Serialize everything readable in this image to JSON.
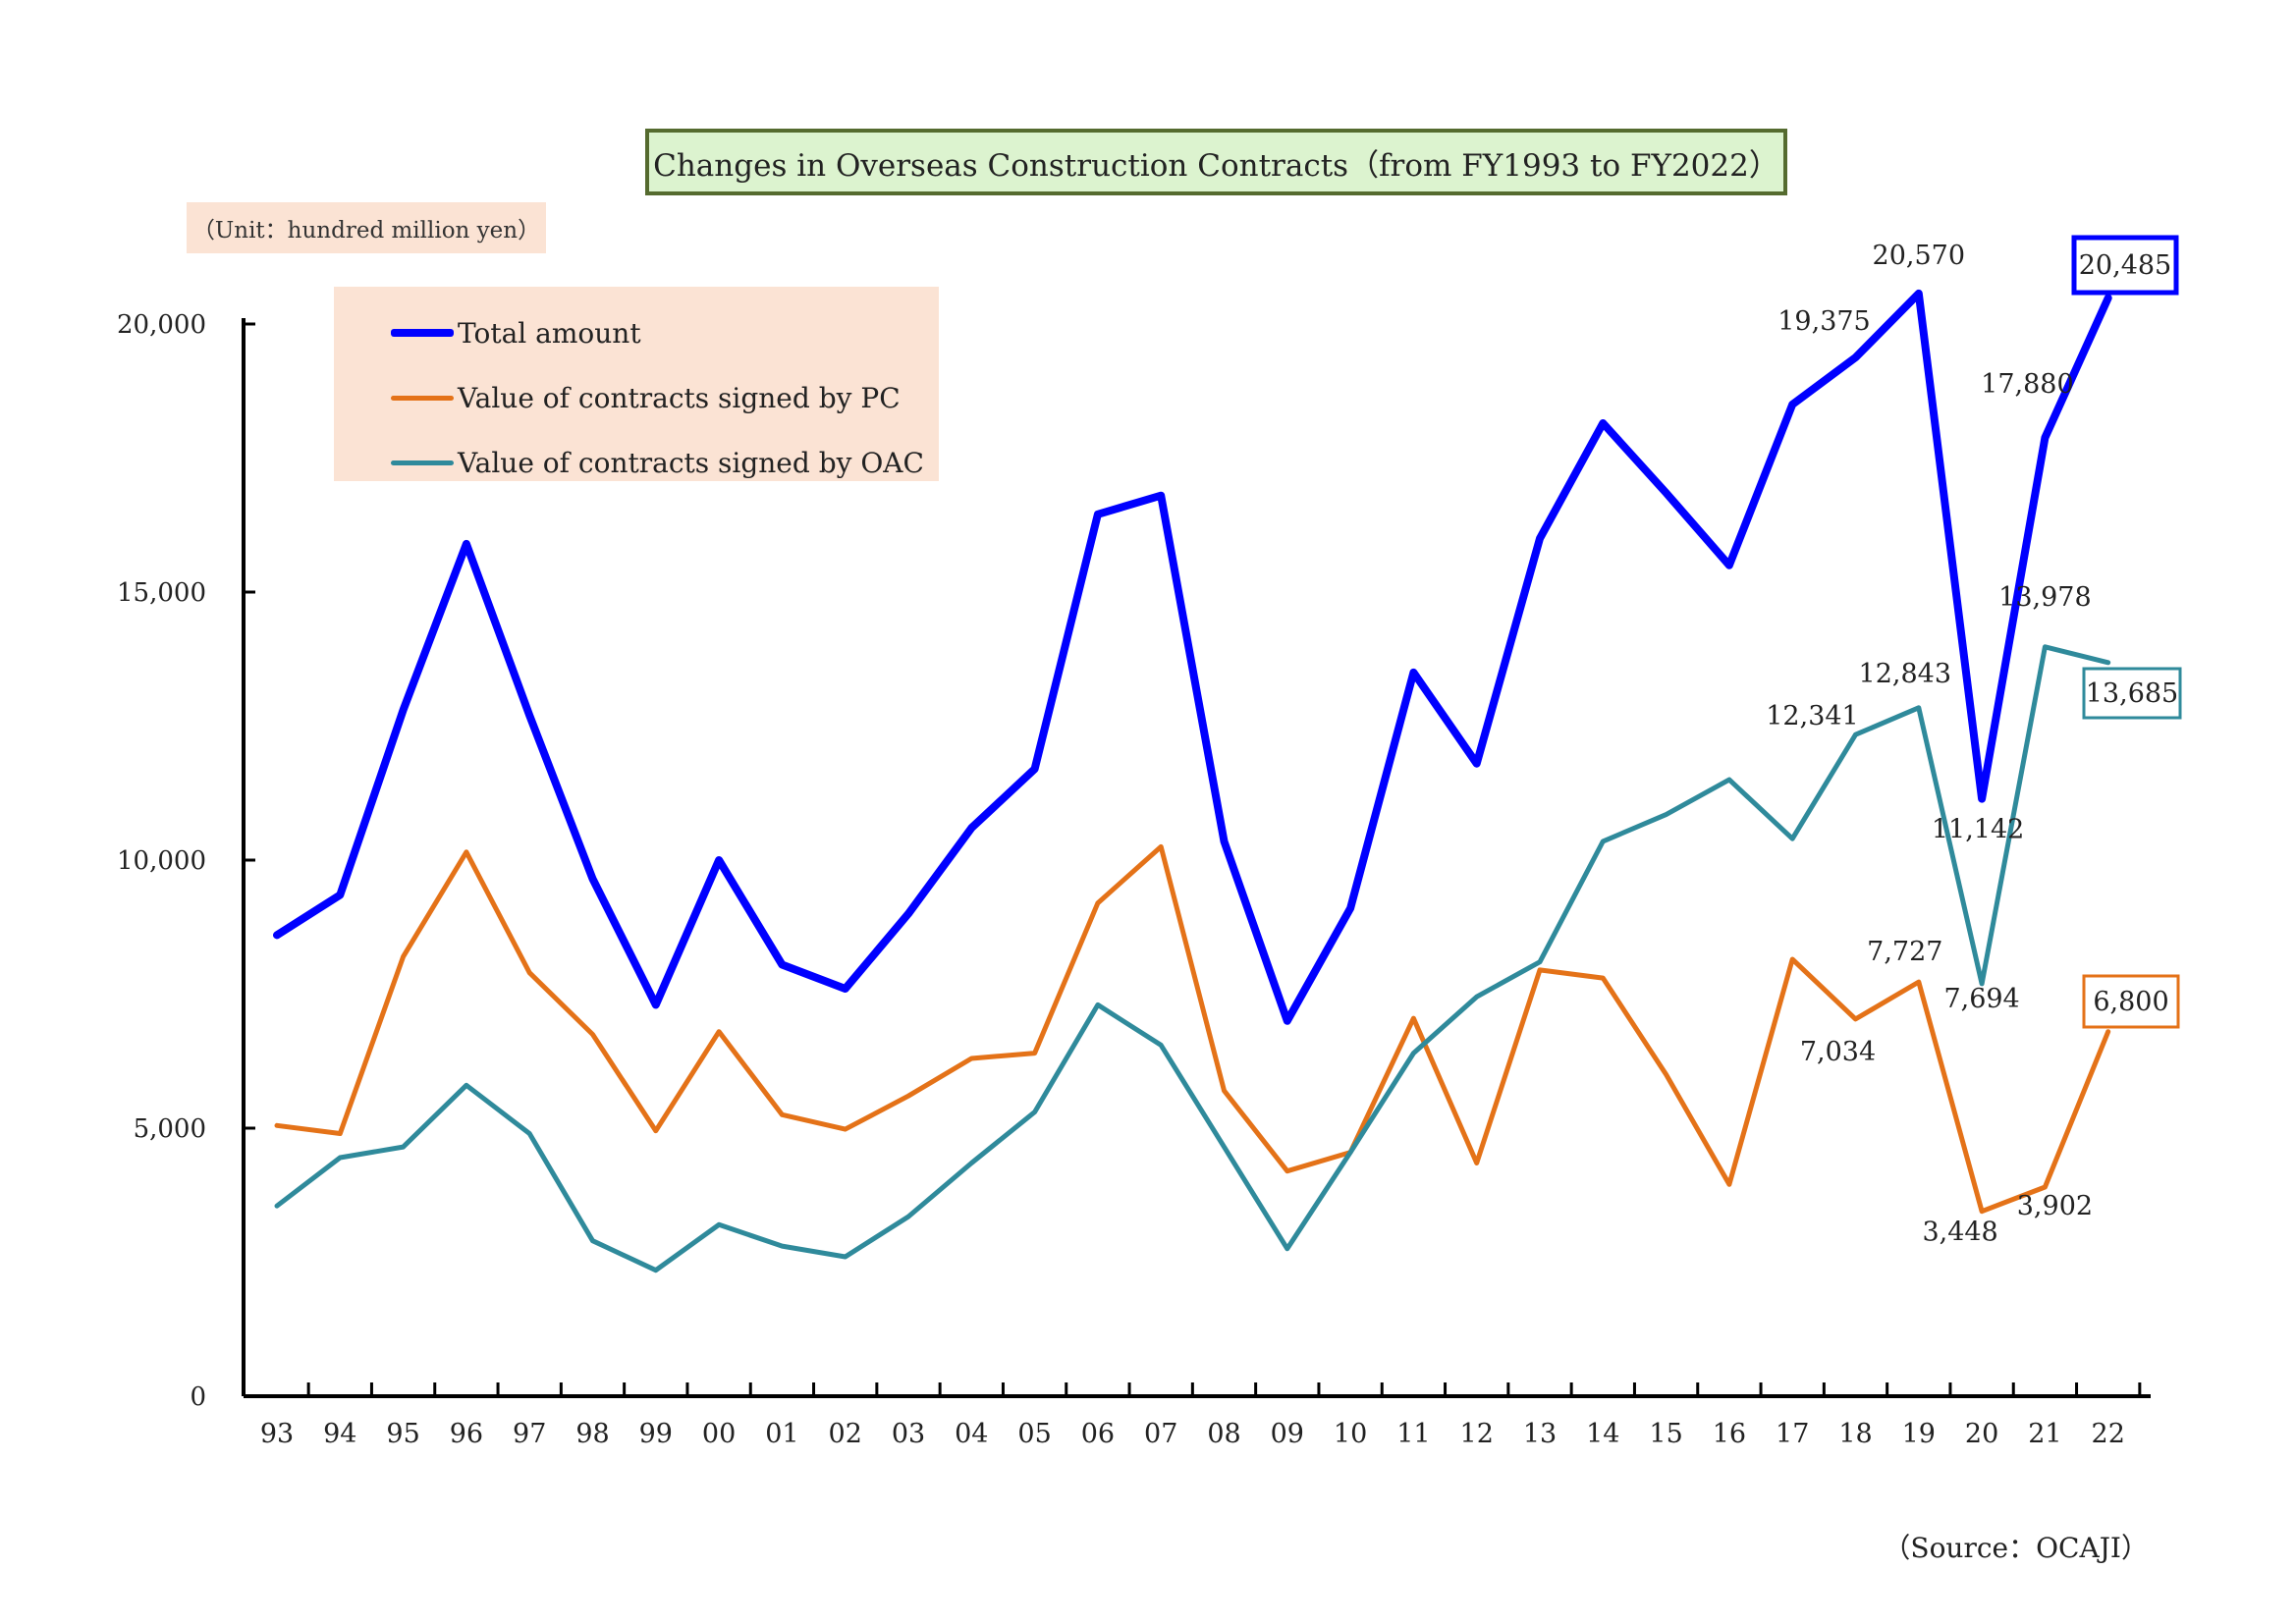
{
  "title": "Changes in Overseas Construction Contracts（from FY1993 to FY2022）",
  "unit": "（Unit：hundred million yen）",
  "source": "（Source：OCAJI）",
  "colors": {
    "total": "#0000ff",
    "pc": "#e47218",
    "oac": "#2f8a9b"
  },
  "chart_data": {
    "type": "line",
    "title": "Changes in Overseas Construction Contracts（from FY1993 to FY2022）",
    "xlabel": "",
    "ylabel": "",
    "ylim": [
      0,
      20000
    ],
    "yticks": [
      {
        "value": 0,
        "label": "0"
      },
      {
        "value": 5000,
        "label": "5,000"
      },
      {
        "value": 10000,
        "label": "10,000"
      },
      {
        "value": 15000,
        "label": "15,000"
      },
      {
        "value": 20000,
        "label": "20,000"
      }
    ],
    "grid": false,
    "legend": "top-left",
    "categories": [
      "93",
      "94",
      "95",
      "96",
      "97",
      "98",
      "99",
      "00",
      "01",
      "02",
      "03",
      "04",
      "05",
      "06",
      "07",
      "08",
      "09",
      "10",
      "11",
      "12",
      "13",
      "14",
      "15",
      "16",
      "17",
      "18",
      "19",
      "20",
      "21",
      "22"
    ],
    "series": [
      {
        "key": "total",
        "name": "Total amount",
        "color": "#0000ff",
        "values": [
          8600,
          9350,
          12800,
          15900,
          12700,
          9650,
          7300,
          10000,
          8050,
          7600,
          9000,
          10600,
          11700,
          16450,
          16800,
          10350,
          7000,
          9100,
          13500,
          11800,
          16000,
          18150,
          16850,
          15500,
          18500,
          19375,
          20570,
          11142,
          17880,
          20485
        ],
        "annotations": [
          {
            "index": 25,
            "label": "19,375"
          },
          {
            "index": 26,
            "label": "20,570"
          },
          {
            "index": 27,
            "label": "11,142"
          },
          {
            "index": 28,
            "label": "17,880"
          },
          {
            "index": 29,
            "label": "20,485",
            "boxed": true
          }
        ]
      },
      {
        "key": "pc",
        "name": "Value of contracts signed by PC",
        "color": "#e47218",
        "values": [
          5050,
          4900,
          8200,
          10150,
          7900,
          6750,
          4950,
          6800,
          5250,
          4980,
          5600,
          6300,
          6400,
          9200,
          10250,
          5700,
          4200,
          4550,
          7050,
          4350,
          7950,
          7800,
          6000,
          3950,
          8150,
          7034,
          7727,
          3448,
          3902,
          6800
        ],
        "annotations": [
          {
            "index": 25,
            "label": "7,034"
          },
          {
            "index": 26,
            "label": "7,727"
          },
          {
            "index": 27,
            "label": "3,448"
          },
          {
            "index": 28,
            "label": "3,902"
          },
          {
            "index": 29,
            "label": "6,800",
            "boxed": true
          }
        ]
      },
      {
        "key": "oac",
        "name": "Value of contracts signed by OAC",
        "color": "#2f8a9b",
        "values": [
          3550,
          4450,
          4650,
          5800,
          4900,
          2900,
          2350,
          3200,
          2800,
          2600,
          3350,
          4350,
          5300,
          7300,
          6550,
          4650,
          2750,
          4550,
          6400,
          7450,
          8100,
          10350,
          10850,
          11500,
          10400,
          12341,
          12843,
          7694,
          13978,
          13685
        ],
        "annotations": [
          {
            "index": 25,
            "label": "12,341"
          },
          {
            "index": 26,
            "label": "12,843"
          },
          {
            "index": 27,
            "label": "7,694"
          },
          {
            "index": 28,
            "label": "13,978"
          },
          {
            "index": 29,
            "label": "13,685",
            "boxed": true
          }
        ]
      }
    ]
  }
}
